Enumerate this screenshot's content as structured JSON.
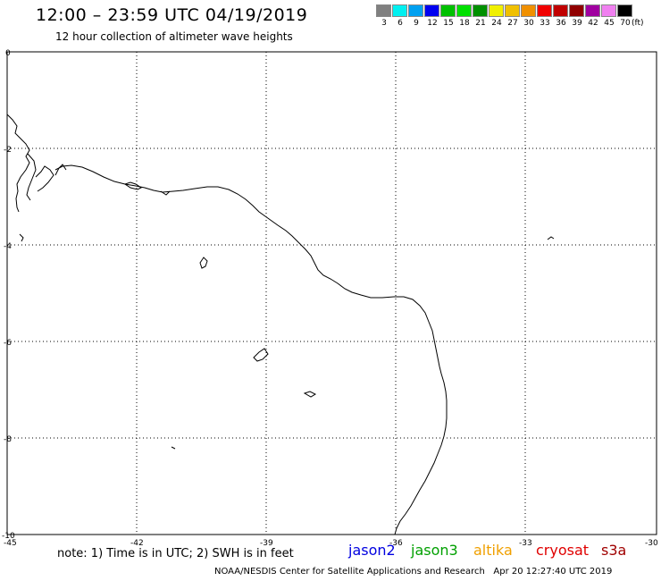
{
  "header": {
    "title": "12:00 – 23:59 UTC 04/19/2019",
    "subtitle": "12 hour collection of altimeter wave heights"
  },
  "legend": {
    "colors": [
      "#808080",
      "#00f0f0",
      "#00a0f0",
      "#0000f0",
      "#00c000",
      "#00e000",
      "#009000",
      "#f0f000",
      "#f0c000",
      "#f09000",
      "#f00000",
      "#c00000",
      "#900000",
      "#a000a0",
      "#f080f0",
      "#000000"
    ],
    "labels": [
      "3",
      "6",
      "9",
      "12",
      "15",
      "18",
      "21",
      "24",
      "27",
      "30",
      "33",
      "36",
      "39",
      "42",
      "45",
      "70"
    ],
    "unit": "(ft)"
  },
  "axes": {
    "x_ticks": [
      "-45",
      "-42",
      "-39",
      "-36",
      "-33",
      "-30"
    ],
    "y_ticks": [
      "0",
      "-2",
      "-4",
      "-6",
      "-8",
      "-10"
    ]
  },
  "note": "note: 1) Time is in UTC; 2) SWH is in feet",
  "satellites": [
    {
      "name": "jason2",
      "color": "#0000e0"
    },
    {
      "name": "jason3",
      "color": "#00a000"
    },
    {
      "name": "altika",
      "color": "#f0a000"
    },
    {
      "name": "cryosat",
      "color": "#e00000"
    },
    {
      "name": "s3a",
      "color": "#a00000"
    }
  ],
  "footer": {
    "agency": "NOAA/NESDIS Center for Satellite Applications and Research",
    "timestamp": "Apr 20 12:27:40 UTC 2019"
  }
}
